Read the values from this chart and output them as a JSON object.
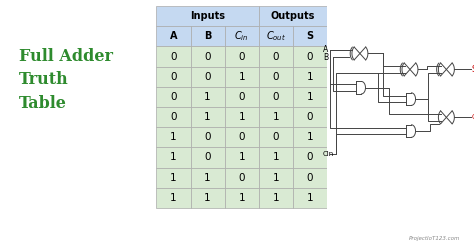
{
  "title_text": "Full Adder\nTruth\nTable",
  "title_color": "#2e8b2e",
  "bg_color": "#ffffff",
  "table_header_bg": "#c5d9f1",
  "table_data_bg": "#d9ead3",
  "table_col_labels": [
    "A",
    "B",
    "C_in",
    "C_out",
    "S"
  ],
  "table_group_labels": [
    "Inputs",
    "Outputs"
  ],
  "table_data": [
    [
      0,
      0,
      0,
      0,
      0
    ],
    [
      0,
      0,
      1,
      0,
      1
    ],
    [
      0,
      1,
      0,
      0,
      1
    ],
    [
      0,
      1,
      1,
      1,
      0
    ],
    [
      1,
      0,
      0,
      0,
      1
    ],
    [
      1,
      0,
      1,
      1,
      0
    ],
    [
      1,
      1,
      0,
      1,
      0
    ],
    [
      1,
      1,
      1,
      1,
      1
    ]
  ],
  "watermark": "ProjectIoT123.com",
  "circuit_color": "#444444",
  "red_color": "#cc0000"
}
